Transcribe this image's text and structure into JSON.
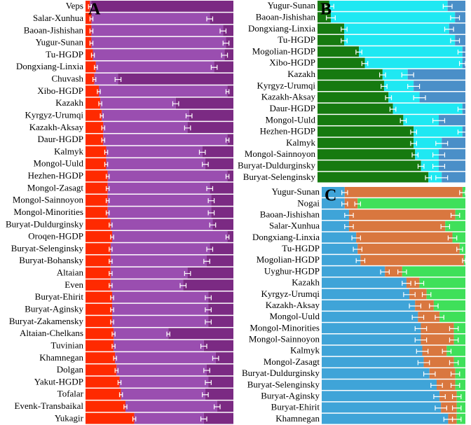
{
  "chart_data": [
    {
      "type": "stacked-bar",
      "title": "A",
      "orientation": "horizontal",
      "xlim": [
        0,
        100
      ],
      "categories": [
        "Veps",
        "Salar-Xunhua",
        "Baoan-Jishishan",
        "Yugur-Sunan",
        "Tu-HGDP",
        "Dongxiang-Linxia",
        "Chuvash",
        "Xibo-HGDP",
        "Kazakh",
        "Kyrgyz-Urumqi",
        "Kazakh-Aksay",
        "Daur-HGDP",
        "Kalmyk",
        "Mongol-Uuld",
        "Hezhen-HGDP",
        "Mongol-Zasagt",
        "Mongol-Sainnoyon",
        "Mongol-Minorities",
        "Buryat-Duldurginsky",
        "Oroqen-HGDP",
        "Buryat-Selenginsky",
        "Buryat-Bohansky",
        "Altaian",
        "Even",
        "Buryat-Ehirit",
        "Buryat-Aginsky",
        "Buryat-Zakamensky",
        "Altaian-Chelkans",
        "Tuvinian",
        "Khamnegan",
        "Dolgan",
        "Yakut-HGDP",
        "Tofalar",
        "Evenk-Transbaikal",
        "Yukagir"
      ],
      "series": [
        {
          "color": "#ff2a00",
          "values": [
            3,
            4,
            4,
            4,
            5,
            7,
            6,
            9,
            10,
            11,
            12,
            12,
            14,
            14,
            15,
            15,
            15,
            15,
            17,
            18,
            17,
            17,
            17,
            17,
            18,
            18,
            18,
            19,
            19,
            20,
            21,
            23,
            24,
            27,
            33
          ],
          "errors": [
            1,
            1,
            1,
            1,
            1,
            1,
            1,
            1,
            1,
            1,
            1,
            1,
            1,
            1,
            1,
            1,
            1,
            1,
            1,
            1,
            1,
            1,
            1,
            1,
            1,
            1,
            1,
            1,
            1,
            1,
            1,
            1,
            1,
            1,
            1
          ]
        },
        {
          "color": "#9a4eb0",
          "values": [
            1,
            80,
            89,
            91,
            89,
            80,
            16,
            87,
            51,
            59,
            57,
            84,
            65,
            67,
            81,
            69,
            70,
            70,
            69,
            78,
            67,
            65,
            52,
            49,
            65,
            65,
            65,
            37,
            61,
            68,
            61,
            60,
            57,
            62,
            47
          ],
          "errors": [
            0,
            2,
            2,
            2,
            2,
            2,
            2,
            1,
            2,
            2,
            2,
            1,
            2,
            2,
            1,
            2,
            2,
            2,
            2,
            1,
            2,
            2,
            2,
            2,
            2,
            2,
            2,
            1,
            2,
            2,
            2,
            2,
            2,
            2,
            2
          ]
        },
        {
          "color": "#7b2a83",
          "values": [
            96,
            16,
            7,
            5,
            6,
            13,
            78,
            4,
            39,
            30,
            31,
            4,
            21,
            19,
            4,
            16,
            15,
            15,
            14,
            4,
            16,
            18,
            31,
            34,
            17,
            17,
            17,
            44,
            20,
            12,
            18,
            17,
            19,
            11,
            20
          ]
        }
      ]
    },
    {
      "type": "stacked-bar",
      "title": "B",
      "orientation": "horizontal",
      "xlim": [
        0,
        100
      ],
      "categories": [
        "Yugur-Sunan",
        "Baoan-Jishishan",
        "Dongxiang-Linxia",
        "Tu-HGDP",
        "Mogolian-HGDP",
        "Xibo-HGDP",
        "Kazakh",
        "Kyrgyz-Urumqi",
        "Kazakh-Aksay",
        "Daur-HGDP",
        "Mongol-Uuld",
        "Hezhen-HGDP",
        "Kalmyk",
        "Mongol-Sainnoyon",
        "Buryat-Duldurginsky",
        "Buryat-Selenginsky"
      ],
      "series": [
        {
          "color": "#167a10",
          "values": [
            8,
            9,
            18,
            18,
            28,
            32,
            44,
            45,
            48,
            51,
            58,
            65,
            65,
            66,
            70,
            75
          ],
          "errors": [
            3,
            3,
            2,
            2,
            2,
            2,
            2,
            2,
            2,
            2,
            2,
            2,
            2,
            2,
            2,
            2
          ]
        },
        {
          "color": "#1fe8f2",
          "values": [
            80,
            84,
            71,
            75,
            70,
            66,
            17,
            20,
            21,
            47,
            24,
            33,
            19,
            16,
            12,
            9
          ],
          "errors": [
            3,
            3,
            3,
            3,
            3,
            2,
            4,
            4,
            4,
            3,
            4,
            3,
            4,
            4,
            4,
            4
          ]
        },
        {
          "color": "#4a8fc8",
          "values": [
            12,
            7,
            11,
            7,
            2,
            2,
            39,
            35,
            31,
            2,
            18,
            2,
            16,
            18,
            18,
            16
          ]
        }
      ]
    },
    {
      "type": "stacked-bar",
      "title": "C",
      "orientation": "horizontal",
      "xlim": [
        0,
        100
      ],
      "categories": [
        "Yugur-Sunan",
        "Nogai",
        "Baoan-Jishishan",
        "Salar-Xunhua",
        "Dongxiang-Linxia",
        "Tu-HGDP",
        "Mogolian-HGDP",
        "Uyghur-HGDP",
        "Kazakh",
        "Kyrgyz-Urumqi",
        "Kazakh-Aksay",
        "Mongol-Uuld",
        "Mongol-Minorities",
        "Mongol-Sainnoyon",
        "Kalmyk",
        "Mongol-Zasagt",
        "Buryat-Duldurginsky",
        "Buryat-Selenginsky",
        "Buryat-Aginsky",
        "Buryat-Ehirit",
        "Khamnegan"
      ],
      "series": [
        {
          "color": "#3fa4d8",
          "values": [
            16,
            16,
            19,
            19,
            24,
            25,
            27,
            44,
            59,
            61,
            65,
            67,
            69,
            69,
            70,
            71,
            75,
            80,
            82,
            83,
            88
          ],
          "errors": [
            2,
            2,
            3,
            3,
            3,
            3,
            3,
            3,
            3,
            4,
            4,
            4,
            4,
            4,
            4,
            4,
            4,
            4,
            4,
            4,
            3
          ]
        },
        {
          "color": "#d9773f",
          "values": [
            82,
            9,
            74,
            67,
            67,
            71,
            72,
            12,
            9,
            12,
            13,
            15,
            23,
            23,
            17,
            21,
            18,
            13,
            12,
            11,
            6
          ],
          "errors": [
            2,
            2,
            3,
            3,
            3,
            2,
            1,
            3,
            3,
            3,
            3,
            3,
            3,
            3,
            3,
            3,
            3,
            3,
            3,
            3,
            3
          ]
        },
        {
          "color": "#3fe05a",
          "values": [
            2,
            75,
            7,
            14,
            9,
            4,
            1,
            44,
            32,
            27,
            22,
            18,
            8,
            8,
            13,
            8,
            7,
            7,
            6,
            6,
            6
          ]
        }
      ]
    }
  ]
}
